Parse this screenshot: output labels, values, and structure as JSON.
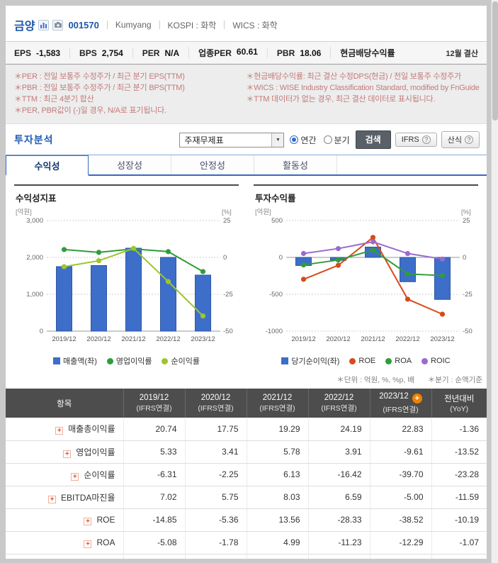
{
  "header": {
    "stock_name": "금양",
    "stock_code": "001570",
    "stock_name_en": "Kumyang",
    "market": "KOSPI : 화학",
    "wics": "WICS : 화학"
  },
  "stats": {
    "items": [
      {
        "label": "EPS",
        "value": "-1,583"
      },
      {
        "label": "BPS",
        "value": "2,754"
      },
      {
        "label": "PER",
        "value": "N/A"
      },
      {
        "label": "업종PER",
        "value": "60.61"
      },
      {
        "label": "PBR",
        "value": "18.06"
      },
      {
        "label": "현금배당수익률",
        "value": ""
      }
    ],
    "settlement": "12월 결산"
  },
  "footnotes": {
    "left": [
      "＊PER : 전일 보통주 수정주가 / 최근 분기 EPS(TTM)",
      "＊PBR : 전일 보통주 수정주가 / 최근 분기 BPS(TTM)",
      "＊TTM : 최근 4분기 합산",
      "＊PER, PBR값이 (-)일 경우, N/A로 표기됩니다."
    ],
    "right": [
      "＊현금배당수익률: 최근 결산 수정DPS(현금) / 전일 보통주 수정주가",
      "＊WICS : WISE Industry Classification Standard, modified by FnGuide",
      "＊TTM 데이터가 없는 경우, 최근 결산 데이터로 표시됩니다."
    ]
  },
  "analysis": {
    "title": "투자분석",
    "select_value": "주재무제표",
    "radio_annual": "연간",
    "radio_quarter": "분기",
    "search_label": "검색",
    "ifrs_label": "IFRS",
    "formula_label": "산식"
  },
  "icons": {
    "dropdown_arrow": "▼",
    "question": "?",
    "row_expand": "+",
    "add_column": "+"
  },
  "tabs": [
    {
      "label": "수익성",
      "active": true
    },
    {
      "label": "성장성",
      "active": false
    },
    {
      "label": "안정성",
      "active": false
    },
    {
      "label": "활동성",
      "active": false
    }
  ],
  "chart_data": [
    {
      "type": "bar",
      "title": "수익성지표",
      "unit_left": "[억원]",
      "unit_right": "[%]",
      "categories": [
        "2019/12",
        "2020/12",
        "2021/12",
        "2022/12",
        "2023/12"
      ],
      "left_axis": {
        "ticks": [
          "3,000",
          "2,000",
          "1,000",
          "0"
        ],
        "max": 3000,
        "min": 0
      },
      "right_axis": {
        "ticks": [
          "25",
          "0",
          "-25",
          "-50"
        ],
        "max": 25,
        "min": -50
      },
      "bar_series": {
        "name": "매출액(좌)",
        "color": "#3d6ec9",
        "stroke": "#2f57a5",
        "values": [
          1750,
          1780,
          2250,
          2000,
          1520
        ]
      },
      "line_series": [
        {
          "name": "영업이익률",
          "color": "#2e9e3a",
          "values": [
            5.33,
            3.41,
            5.78,
            3.91,
            -9.61
          ]
        },
        {
          "name": "순이익률",
          "color": "#9dc62d",
          "values": [
            -6.31,
            -2.25,
            6.13,
            -16.42,
            -39.7
          ]
        }
      ]
    },
    {
      "type": "bar",
      "title": "투자수익률",
      "unit_left": "[억원]",
      "unit_right": "[%]",
      "categories": [
        "2019/12",
        "2020/12",
        "2021/12",
        "2022/12",
        "2023/12"
      ],
      "left_axis": {
        "ticks": [
          "500",
          "0",
          "-500",
          "-1000"
        ],
        "max": 500,
        "min": -1000
      },
      "right_axis": {
        "ticks": [
          "25",
          "0",
          "-25",
          "-50"
        ],
        "max": 25,
        "min": -50
      },
      "bar_series": {
        "name": "당기순이익(좌)",
        "color": "#3d6ec9",
        "stroke": "#2f57a5",
        "values": [
          -110,
          -40,
          140,
          -330,
          -570
        ]
      },
      "line_series": [
        {
          "name": "ROE",
          "color": "#d84a1b",
          "values": [
            -14.85,
            -5.36,
            13.56,
            -28.33,
            -38.52
          ]
        },
        {
          "name": "ROA",
          "color": "#2e9e3a",
          "values": [
            -5.08,
            -1.78,
            4.99,
            -11.23,
            -12.29
          ]
        },
        {
          "name": "ROIC",
          "color": "#9a6bce",
          "values": [
            2.65,
            5.98,
            10.56,
            2.63,
            -1.11
          ]
        }
      ]
    }
  ],
  "table_note": {
    "unit": "＊단위 : 억원, %, %p, 배",
    "basis": "＊분기 : 순액기준"
  },
  "table": {
    "col_item": "항목",
    "columns": [
      {
        "year": "2019/12",
        "sub": "(IFRS연결)",
        "plus": false
      },
      {
        "year": "2020/12",
        "sub": "(IFRS연결)",
        "plus": false
      },
      {
        "year": "2021/12",
        "sub": "(IFRS연결)",
        "plus": false
      },
      {
        "year": "2022/12",
        "sub": "(IFRS연결)",
        "plus": false
      },
      {
        "year": "2023/12",
        "sub": "(IFRS연결)",
        "plus": true
      },
      {
        "year": "전년대비",
        "sub": "(YoY)",
        "plus": false
      }
    ],
    "rows": [
      {
        "label": "매출총이익률",
        "values": [
          "20.74",
          "17.75",
          "19.29",
          "24.19",
          "22.83",
          "-1.36"
        ]
      },
      {
        "label": "영업이익률",
        "values": [
          "5.33",
          "3.41",
          "5.78",
          "3.91",
          "-9.61",
          "-13.52"
        ]
      },
      {
        "label": "순이익률",
        "values": [
          "-6.31",
          "-2.25",
          "6.13",
          "-16.42",
          "-39.70",
          "-23.28"
        ]
      },
      {
        "label": "EBITDA마진율",
        "values": [
          "7.02",
          "5.75",
          "8.03",
          "6.59",
          "-5.00",
          "-11.59"
        ]
      },
      {
        "label": "ROE",
        "values": [
          "-14.85",
          "-5.36",
          "13.56",
          "-28.33",
          "-38.52",
          "-10.19"
        ]
      },
      {
        "label": "ROA",
        "values": [
          "-5.08",
          "-1.78",
          "4.99",
          "-11.23",
          "-12.29",
          "-1.07"
        ]
      },
      {
        "label": "ROIC",
        "values": [
          "2.65",
          "5.98",
          "10.56",
          "2.63",
          "-1.11",
          "-3.74"
        ]
      }
    ]
  },
  "colors": {
    "accent_blue": "#1d55a7",
    "bar_blue": "#3d6ec9",
    "negative_red": "#d43a33",
    "table_header_bg": "#4d4d4d",
    "footnote_red": "#c47a7a",
    "add_button_orange": "#ef8200"
  }
}
